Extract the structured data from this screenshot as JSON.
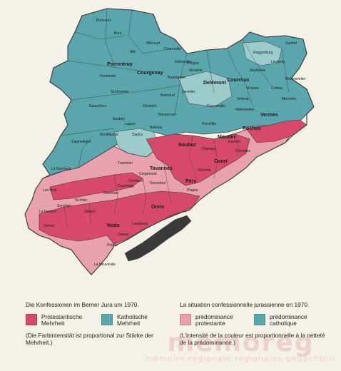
{
  "map": {
    "colors": {
      "catholic": "#5aa6ad",
      "catholic_light": "#9ccbcc",
      "protestant": "#d6496a",
      "protestant_light": "#e8a1ae",
      "lake": "#3a3a3a",
      "border": "#3a3a3a"
    },
    "labels": [
      "Boncourt",
      "Bure",
      "Alle",
      "Miécourt",
      "Charmoille",
      "Porrentruy",
      "Fontenais",
      "Courgenay",
      "St-Ursanne",
      "Epauvillers",
      "Soubey",
      "Glovelier",
      "Boécourt",
      "Bassecourt",
      "Develier",
      "Delémont",
      "Courroux",
      "Vicques",
      "Courrendlin",
      "Soyhières",
      "Roggenburg",
      "Vermes",
      "Rebeuvelier",
      "Moutier",
      "Perrefitte",
      "Souboz",
      "Roches",
      "Court",
      "Corcelles",
      "Saulcy",
      "Saignelégier",
      "Les Bois",
      "Le Noirmont",
      "Montfaucon",
      "Lajoux",
      "Bellelay",
      "Tramelan",
      "Tavannes",
      "Sonceboz",
      "Péry",
      "Plagne",
      "Orvin",
      "Nods",
      "Renan",
      "La Ferrière",
      "Sonvilier",
      "St-Imier",
      "Villeret",
      "Cormoret",
      "Courtelary",
      "Cortébert",
      "Corgémont",
      "Lamboing",
      "Diesse",
      "Prêles",
      "La Neuveville",
      "Sorvilier",
      "Seehof",
      "Liesberg",
      "Ederswiler",
      "Movelier",
      "Pleigne",
      "Bourrignon",
      "Mervelier",
      "Corban",
      "Montsevelier",
      "Vellerat",
      "Champoz",
      "Eschert"
    ]
  },
  "caption": {
    "de": "Die Konfessionen im Berner Jura um 1970.",
    "fr": "La situation confessionnelle jurassienne en 1970."
  },
  "legend": [
    {
      "label_line1": "Protestantische",
      "label_line2": "Mehrheit",
      "color": "#d6496a"
    },
    {
      "label_line1": "Katholische",
      "label_line2": "Mehrheit",
      "color": "#5aa6ad"
    },
    {
      "label_line1": "prédominance",
      "label_line2": "protestante",
      "color": "#e8a1ae"
    },
    {
      "label_line1": "prédominance",
      "label_line2": "catholique",
      "color": "#5aa6ad"
    }
  ],
  "note": {
    "de": "(Die Farbintensität ist proportional zur Stärke der Mehrheit.)",
    "fr": "(L'intensité de la couleur est proportionnelle à la netteté de la prédominance.)"
  },
  "watermark": {
    "logo": "memoreg",
    "subtitle": "mémoire régionale regionales gedächtnis"
  }
}
